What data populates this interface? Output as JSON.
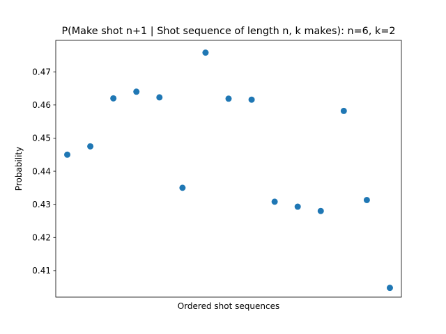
{
  "chart_data": {
    "type": "scatter",
    "title": "P(Make shot n+1 | Shot sequence of length n, k makes): n=6, k=2",
    "xlabel": "Ordered shot sequences",
    "ylabel": "Probability",
    "x_ticks_shown": false,
    "grid": false,
    "legend": false,
    "ylim": [
      0.402,
      0.4795
    ],
    "yticks": [
      "0.41",
      "0.42",
      "0.43",
      "0.44",
      "0.45",
      "0.46",
      "0.47"
    ],
    "marker_color": "#1f77b4",
    "values": [
      0.445,
      0.4475,
      0.462,
      0.464,
      0.4623,
      0.435,
      0.4758,
      0.4619,
      0.4616,
      0.4308,
      0.4293,
      0.428,
      0.4582,
      0.4313,
      0.4048
    ]
  }
}
